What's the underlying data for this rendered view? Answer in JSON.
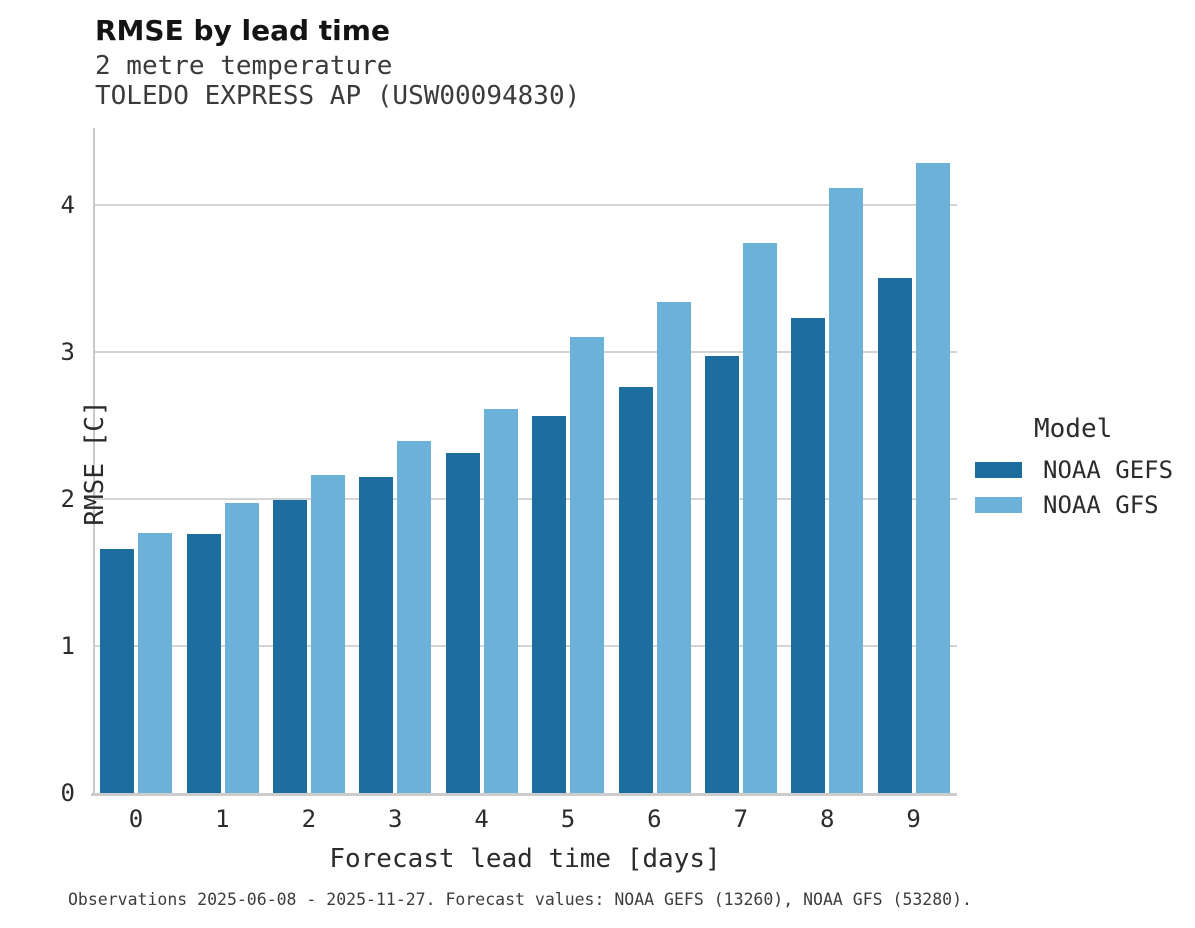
{
  "header": {
    "title": "RMSE by lead time",
    "subtitle1": "2 metre temperature",
    "subtitle2": "TOLEDO EXPRESS AP (USW00094830)"
  },
  "axes": {
    "y_label": "RMSE [C]",
    "x_label": "Forecast lead time [days]",
    "y_ticks": [
      0,
      1,
      2,
      3,
      4
    ]
  },
  "legend": {
    "title": "Model",
    "entries": [
      {
        "label": "NOAA GEFS",
        "color": "#1d6e9e"
      },
      {
        "label": "NOAA GFS",
        "color": "#6cb1d8"
      }
    ]
  },
  "caption": "Observations 2025-06-08 - 2025-11-27. Forecast values: NOAA GEFS (13260), NOAA GFS (53280).",
  "colors": {
    "gefs": "#1d6e9e",
    "gfs": "#6cb1d8",
    "gridline": "#d4d4d4",
    "spine": "#c9c9c9"
  },
  "chart_data": {
    "type": "bar",
    "grouped": true,
    "title": "RMSE by lead time",
    "subtitle": "2 metre temperature — TOLEDO EXPRESS AP (USW00094830)",
    "xlabel": "Forecast lead time [days]",
    "ylabel": "RMSE [C]",
    "categories": [
      "0",
      "1",
      "2",
      "3",
      "4",
      "5",
      "6",
      "7",
      "8",
      "9"
    ],
    "series": [
      {
        "name": "NOAA GEFS",
        "color": "#1d6e9e",
        "values": [
          1.66,
          1.76,
          1.99,
          2.15,
          2.31,
          2.56,
          2.76,
          2.97,
          3.23,
          3.5
        ]
      },
      {
        "name": "NOAA GFS",
        "color": "#6cb1d8",
        "values": [
          1.77,
          1.97,
          2.16,
          2.39,
          2.61,
          3.1,
          3.34,
          3.74,
          4.11,
          4.28
        ]
      }
    ],
    "ylim": [
      0,
      4.52
    ],
    "y_ticks": [
      0,
      1,
      2,
      3,
      4
    ],
    "grid": "horizontal",
    "legend_position": "right",
    "legend_title": "Model"
  }
}
